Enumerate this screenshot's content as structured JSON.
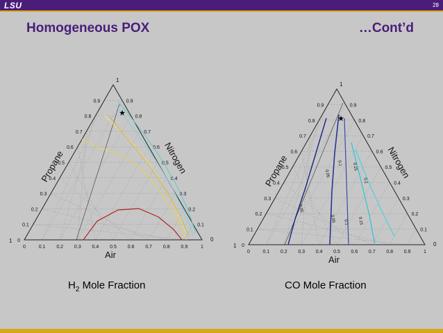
{
  "header": {
    "logo": "LSU",
    "page_number": "28"
  },
  "title": "Homogeneous POX",
  "subtitle": "…Cont’d",
  "left_diagram": {
    "corner_top": "1",
    "corner_left": "1",
    "corner_right": "0",
    "left_axis_label": "Propane",
    "right_axis_label": "Nitrogen",
    "bottom_axis_label": "Air",
    "bottom_ticks": [
      "0",
      "0.1",
      "0.2",
      "0.3",
      "0.4",
      "0.5",
      "0.6",
      "0.7",
      "0.8",
      "0.9",
      "1"
    ],
    "left_ticks": [
      "0",
      "0.1",
      "0.2",
      "0.3",
      "0.4",
      "0.5",
      "0.6",
      "0.7",
      "0.8",
      "0.9"
    ],
    "right_ticks": [
      "0.9",
      "0.8",
      "0.7",
      "0.6",
      "0.5",
      "0.4",
      "0.3",
      "0.2",
      "0.1"
    ],
    "caption_main": "H",
    "caption_sub": "2",
    "caption_tail": " Mole Fraction"
  },
  "right_diagram": {
    "corner_top": "1",
    "corner_left": "1",
    "corner_right": "0",
    "left_axis_label": "Propane",
    "right_axis_label": "Nitrogen",
    "bottom_axis_label": "Air",
    "bottom_ticks": [
      "0",
      "0.1",
      "0.2",
      "0.3",
      "0.4",
      "0.5",
      "0.6",
      "0.7",
      "0.8",
      "0.9",
      "1"
    ],
    "left_ticks": [
      "0",
      "0.1",
      "0.2",
      "0.3",
      "0.4",
      "0.5",
      "0.6",
      "0.7",
      "0.8",
      "0.9"
    ],
    "right_ticks": [
      "0.9",
      "0.8",
      "0.7",
      "0.6",
      "0.5",
      "0.4",
      "0.3",
      "0.2",
      "0.1"
    ],
    "contour_labels": [
      "0.05",
      "0.05",
      "0.1",
      "0.15",
      "0.2",
      "0.05",
      "0.1",
      "0.15"
    ],
    "caption": "CO Mole Fraction"
  },
  "colors": {
    "purple": "#4b1d7a",
    "gold": "#d9a81a",
    "h2_contours": [
      "#b22222",
      "#e8d44d",
      "#f2e27a",
      "#c9b23a",
      "#7fd3d9",
      "#5ec8d0"
    ],
    "co_contours": [
      "#1a237e",
      "#283593",
      "#3949ab",
      "#26c6da",
      "#4dd0e1"
    ]
  }
}
